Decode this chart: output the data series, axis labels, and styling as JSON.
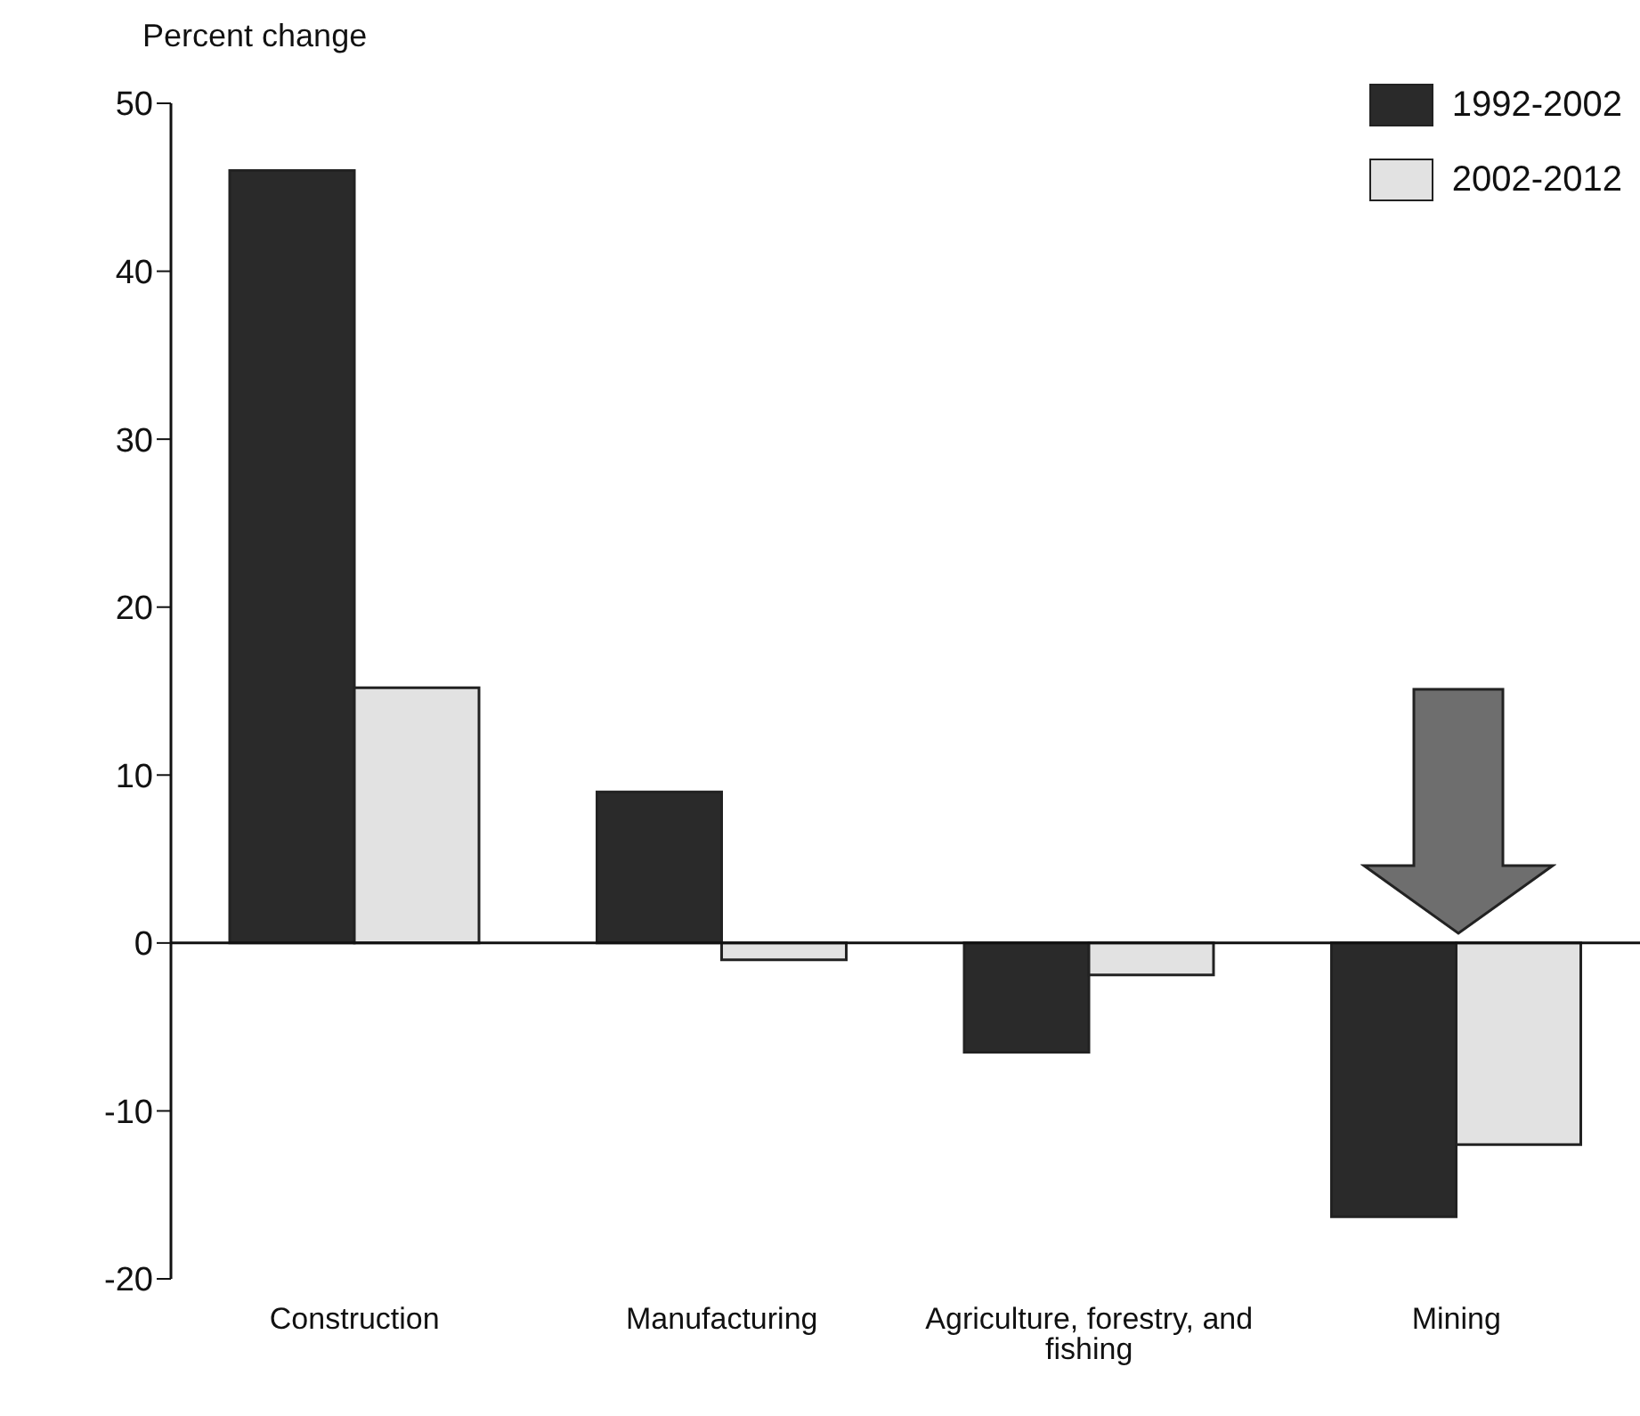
{
  "chart_data": {
    "type": "bar",
    "ylabel": "Percent change",
    "categories": [
      "Construction",
      "Manufacturing",
      "Agriculture, forestry, and fishing",
      "Mining"
    ],
    "series": [
      {
        "name": "1992-2002",
        "color": "#2a2a2a",
        "values": [
          46,
          9,
          -6.5,
          -16.3
        ]
      },
      {
        "name": "2002-2012",
        "color": "#e2e2e2",
        "values": [
          15.2,
          -1,
          -1.9,
          -12
        ]
      }
    ],
    "ylim": [
      -20,
      50
    ],
    "yticks": [
      -20,
      -10,
      0,
      10,
      20,
      30,
      40,
      50
    ],
    "legend": "top right"
  }
}
